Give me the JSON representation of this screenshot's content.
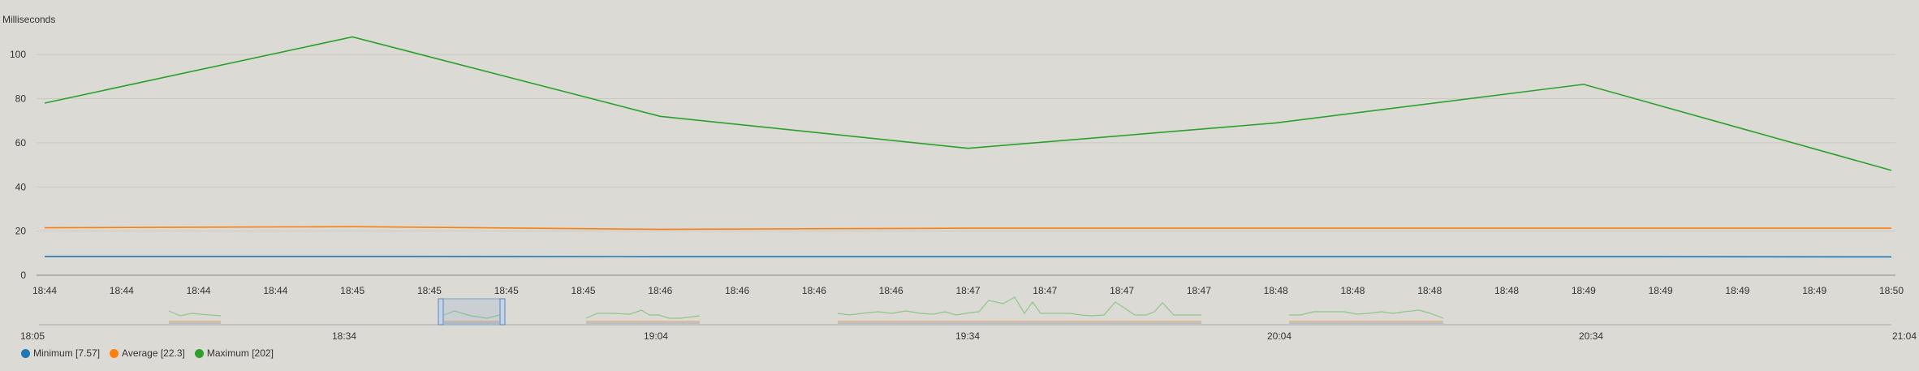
{
  "chart_data": {
    "type": "line",
    "ylabel": "Milliseconds",
    "yticks": [
      0,
      20,
      40,
      60,
      80,
      100
    ],
    "ylim": [
      0,
      110
    ],
    "x_tick_labels": [
      "18:44",
      "18:44",
      "18:44",
      "18:44",
      "18:45",
      "18:45",
      "18:45",
      "18:45",
      "18:46",
      "18:46",
      "18:46",
      "18:46",
      "18:47",
      "18:47",
      "18:47",
      "18:47",
      "18:48",
      "18:48",
      "18:48",
      "18:48",
      "18:49",
      "18:49",
      "18:49",
      "18:49",
      "18:50"
    ],
    "x_index": [
      0,
      4,
      8,
      12,
      16,
      20,
      24
    ],
    "series": [
      {
        "name": "Minimum",
        "color": "#1f77b4",
        "values": [
          8.5,
          8.5,
          8.4,
          8.4,
          8.4,
          8.4,
          8.3
        ]
      },
      {
        "name": "Average",
        "color": "#ff7f0e",
        "values": [
          21.5,
          22,
          20.8,
          21.3,
          21.3,
          21.3,
          21.3
        ]
      },
      {
        "name": "Maximum",
        "color": "#2ca02c",
        "values": [
          78,
          108,
          72,
          57.5,
          69,
          86.5,
          47.5
        ]
      }
    ],
    "grid": true,
    "legend": "bottom-left",
    "legend_labels": [
      "Minimum [7.57]",
      "Average [22.3]",
      "Maximum [202]"
    ],
    "navigator": {
      "time_labels": [
        "18:05",
        "18:34",
        "19:04",
        "19:34",
        "20:04",
        "20:34",
        "21:04"
      ],
      "selection_label": "18:44 – 18:50"
    }
  }
}
